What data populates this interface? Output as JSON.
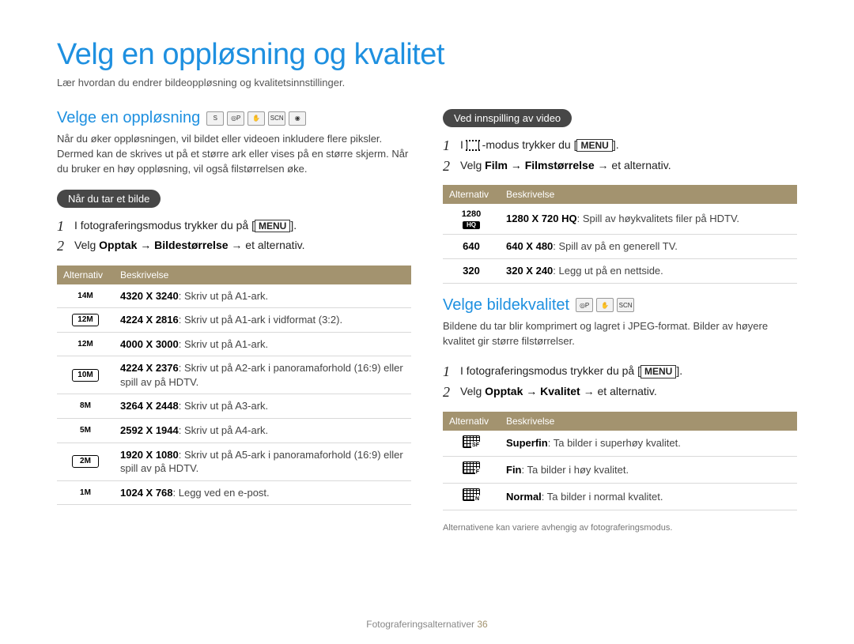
{
  "page_title": "Velg en oppløsning og kvalitet",
  "page_subtitle": "Lær hvordan du endrer bildeoppløsning og kvalitetsinnstillinger.",
  "footer_label": "Fotograferingsalternativer",
  "footer_page": "36",
  "left": {
    "section_title": "Velge en oppløsning",
    "section_icons": [
      "smart",
      "P",
      "dual",
      "scene",
      "movie"
    ],
    "intro": "Når du øker oppløsningen, vil bildet eller videoen inkludere flere piksler. Dermed kan de skrives ut på et større ark eller vises på en større skjerm. Når du bruker en høy oppløsning, vil også filstørrelsen øke.",
    "pill": "Når du tar et bilde",
    "step1_prefix": "I fotograferingsmodus trykker du på [",
    "step1_key": "MENU",
    "step1_suffix": "].",
    "step2_prefix": "Velg ",
    "step2_bold": "Opptak → Bildestørrelse",
    "step2_suffix": " → et alternativ.",
    "th_alt": "Alternativ",
    "th_desc": "Beskrivelse",
    "rows": [
      {
        "icon": "14M",
        "boxed": false,
        "b": "4320 X 3240",
        "t": ": Skriv ut på A1-ark."
      },
      {
        "icon": "12M",
        "boxed": true,
        "b": "4224 X 2816",
        "t": ": Skriv ut på A1-ark i vidformat (3:2)."
      },
      {
        "icon": "12M",
        "boxed": false,
        "b": "4000 X 3000",
        "t": ": Skriv ut på A1-ark."
      },
      {
        "icon": "10M",
        "boxed": true,
        "b": "4224 X 2376",
        "t": ": Skriv ut på A2-ark i panoramaforhold (16:9) eller spill av på HDTV."
      },
      {
        "icon": "8M",
        "boxed": false,
        "b": "3264 X 2448",
        "t": ": Skriv ut på A3-ark."
      },
      {
        "icon": "5M",
        "boxed": false,
        "b": "2592 X 1944",
        "t": ": Skriv ut på A4-ark."
      },
      {
        "icon": "2M",
        "boxed": true,
        "b": "1920 X 1080",
        "t": ": Skriv ut på A5-ark i panoramaforhold (16:9) eller spill av på HDTV."
      },
      {
        "icon": "1M",
        "boxed": false,
        "b": "1024 X 768",
        "t": ": Legg ved en e-post."
      }
    ]
  },
  "right": {
    "pill_video": "Ved innspilling av video",
    "vstep1_prefix": "I ",
    "vstep1_mid": " -modus trykker du [",
    "vstep1_key": "MENU",
    "vstep1_suffix": "].",
    "vstep2_prefix": "Velg ",
    "vstep2_bold": "Film → Filmstørrelse",
    "vstep2_suffix": " → et alternativ.",
    "th_alt": "Alternativ",
    "th_desc": "Beskrivelse",
    "vrows": [
      {
        "icon": "1280HQ",
        "b": "1280 X 720 HQ",
        "t": ": Spill av høykvalitets filer på HDTV."
      },
      {
        "icon": "640",
        "b": "640 X 480",
        "t": ": Spill av på en generell TV."
      },
      {
        "icon": "320",
        "b": "320 X 240",
        "t": ": Legg ut på en nettside."
      }
    ],
    "q_section_title": "Velge bildekvalitet",
    "q_section_icons": [
      "P",
      "dual",
      "scene"
    ],
    "q_intro": "Bildene du tar blir komprimert og lagret i JPEG-format. Bilder av høyere kvalitet gir større filstørrelser.",
    "qstep1_prefix": "I fotograferingsmodus trykker du på [",
    "qstep1_key": "MENU",
    "qstep1_suffix": "].",
    "qstep2_prefix": "Velg ",
    "qstep2_bold": "Opptak → Kvalitet",
    "qstep2_suffix": " → et alternativ.",
    "qrows": [
      {
        "cls": "q-sf",
        "b": "Superfin",
        "t": ": Ta bilder i superhøy kvalitet."
      },
      {
        "cls": "q-f",
        "b": "Fin",
        "t": ": Ta bilder i høy kvalitet."
      },
      {
        "cls": "q-n",
        "b": "Normal",
        "t": ": Ta bilder i normal kvalitet."
      }
    ],
    "footnote": "Alternativene kan variere avhengig av fotograferingsmodus."
  }
}
